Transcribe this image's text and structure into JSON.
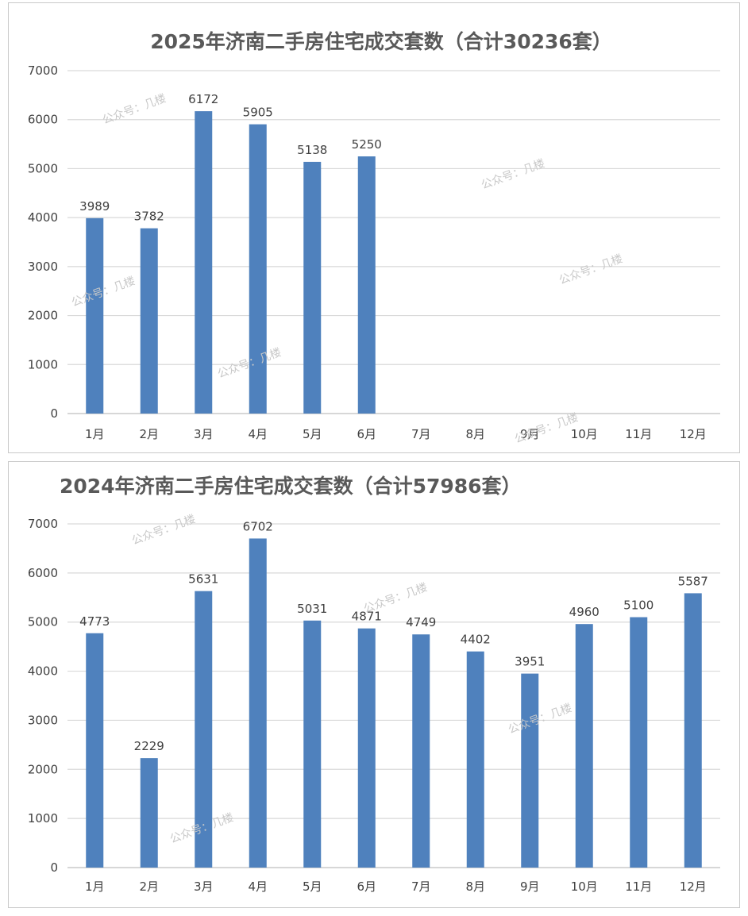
{
  "watermark": "公众号：几楼",
  "colors": {
    "bar": "#4f81bd",
    "grid": "#d9d9d9",
    "axis": "#bfbfbf",
    "title": "#595959",
    "text": "#404040"
  },
  "chart_data": [
    {
      "type": "bar",
      "title": "2025年济南二手房住宅成交套数（合计30236套）",
      "categories": [
        "1月",
        "2月",
        "3月",
        "4月",
        "5月",
        "6月",
        "7月",
        "8月",
        "9月",
        "10月",
        "11月",
        "12月"
      ],
      "values": [
        3989,
        3782,
        6172,
        5905,
        5138,
        5250,
        null,
        null,
        null,
        null,
        null,
        null
      ],
      "y_ticks": [
        0,
        1000,
        2000,
        3000,
        4000,
        5000,
        6000,
        7000
      ],
      "ylim": [
        0,
        7000
      ],
      "grid": true,
      "legend": "none"
    },
    {
      "type": "bar",
      "title": "2024年济南二手房住宅成交套数（合计57986套）",
      "categories": [
        "1月",
        "2月",
        "3月",
        "4月",
        "5月",
        "6月",
        "7月",
        "8月",
        "9月",
        "10月",
        "11月",
        "12月"
      ],
      "values": [
        4773,
        2229,
        5631,
        6702,
        5031,
        4871,
        4749,
        4402,
        3951,
        4960,
        5100,
        5587
      ],
      "y_ticks": [
        0,
        1000,
        2000,
        3000,
        4000,
        5000,
        6000,
        7000
      ],
      "ylim": [
        0,
        7000
      ],
      "grid": true,
      "legend": "none"
    }
  ]
}
